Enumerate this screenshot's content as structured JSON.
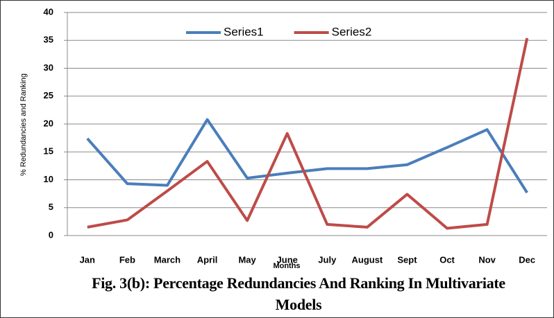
{
  "chart_data": {
    "type": "line",
    "categories": [
      "Jan",
      "Feb",
      "March",
      "April",
      "May",
      "June",
      "July",
      "August",
      "Sept",
      "Oct",
      "Nov",
      "Dec"
    ],
    "series": [
      {
        "name": "Series1",
        "color": "#4a7ebb",
        "values": [
          17.4,
          9.3,
          9.0,
          20.8,
          10.3,
          11.2,
          12.0,
          12.0,
          12.7,
          15.8,
          19.0,
          7.7
        ]
      },
      {
        "name": "Series2",
        "color": "#be4b48",
        "values": [
          1.5,
          2.8,
          8.0,
          13.3,
          2.7,
          18.3,
          2.0,
          1.5,
          7.4,
          1.3,
          2.0,
          35.4
        ]
      }
    ],
    "ylim": [
      0,
      40
    ],
    "yticks": [
      0,
      5,
      10,
      15,
      20,
      25,
      30,
      35,
      40
    ],
    "grid": true,
    "x_label": "Months",
    "y_label": "% Redundancies and Ranking",
    "legend": "top",
    "caption": "Fig. 3(b): Percentage Redundancies And Ranking In Multivariate Models"
  }
}
